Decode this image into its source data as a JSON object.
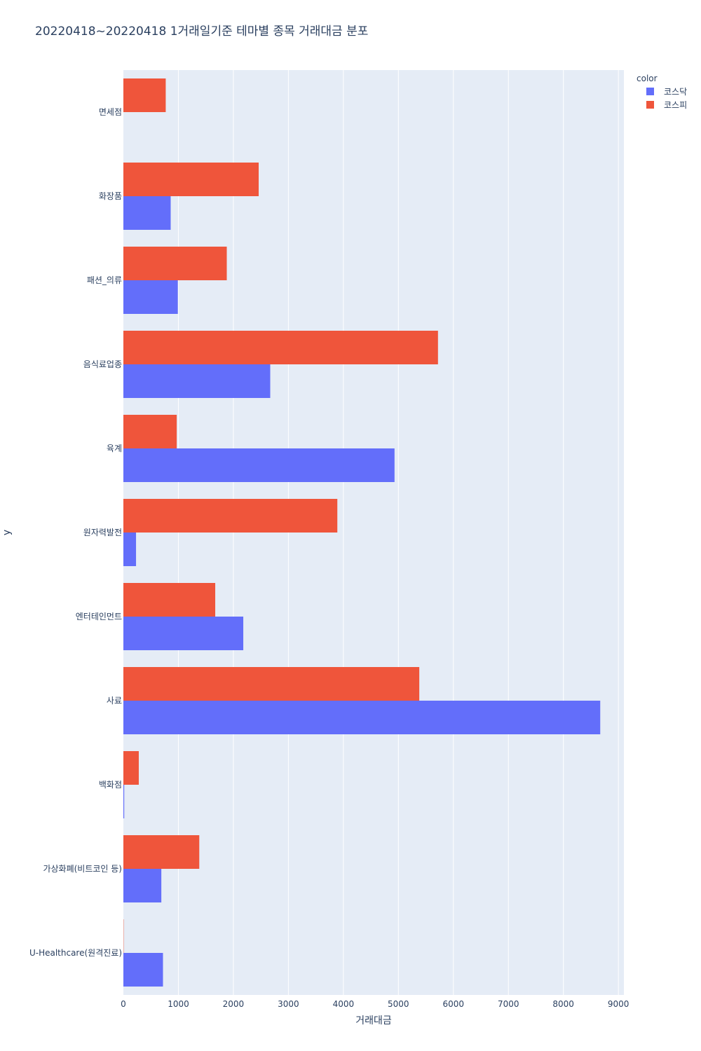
{
  "chart_data": {
    "type": "bar",
    "orientation": "horizontal",
    "title": "20220418~20220418 1거래일기준 테마별 종목 거래대금 분포",
    "xlabel": "거래대금",
    "ylabel": "y",
    "xlim": [
      0,
      9100
    ],
    "xticks": [
      0,
      1000,
      2000,
      3000,
      4000,
      5000,
      6000,
      7000,
      8000,
      9000
    ],
    "categories": [
      "면세점",
      "화장품",
      "패션_의류",
      "음식료업종",
      "육계",
      "원자력발전",
      "엔터테인먼트",
      "사료",
      "백화점",
      "가상화폐(비트코인 등)",
      "U-Healthcare(원격진료)"
    ],
    "legend_title": "color",
    "series": [
      {
        "name": "코스닥",
        "color": "#636efa",
        "values": [
          0,
          860,
          990,
          2670,
          4930,
          230,
          2180,
          8670,
          15,
          690,
          720
        ]
      },
      {
        "name": "코스피",
        "color": "#ef553b",
        "values": [
          770,
          2460,
          1880,
          5720,
          970,
          3890,
          1670,
          5380,
          280,
          1380,
          5
        ]
      }
    ],
    "grid": true,
    "legend_position": "top-right"
  }
}
